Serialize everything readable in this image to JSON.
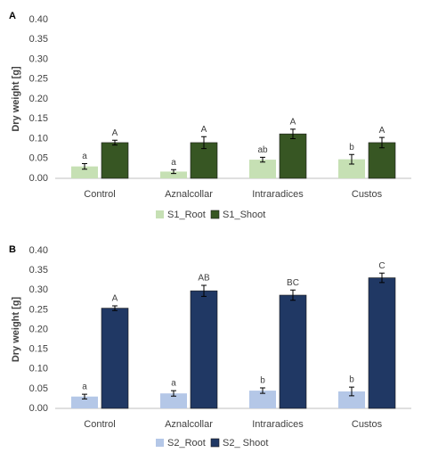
{
  "chart_data": [
    {
      "type": "bar",
      "panel_label": "A",
      "y_label": "Dry weight [g]",
      "categories": [
        "Control",
        "Aznalcollar",
        "Intraradices",
        "Custos"
      ],
      "series": [
        {
          "name": "S1_Root",
          "color": "#c6e0b4",
          "values": [
            0.03,
            0.017,
            0.047,
            0.048
          ],
          "errors": [
            0.007,
            0.005,
            0.006,
            0.012
          ],
          "labels": [
            "a",
            "a",
            "ab",
            "b"
          ]
        },
        {
          "name": "S1_Shoot",
          "color": "#375623",
          "values": [
            0.09,
            0.09,
            0.112,
            0.09
          ],
          "errors": [
            0.006,
            0.015,
            0.012,
            0.013
          ],
          "labels": [
            "A",
            "A",
            "A",
            "A"
          ]
        }
      ],
      "ylim": [
        0,
        0.4
      ],
      "yticks": [
        {
          "value": 0,
          "label": "0.00"
        },
        {
          "value": 0.05,
          "label": "0.05"
        },
        {
          "value": 0.1,
          "label": "0.10"
        },
        {
          "value": 0.15,
          "label": "0.15"
        },
        {
          "value": 0.2,
          "label": "0.20"
        },
        {
          "value": 0.25,
          "label": "0.25"
        },
        {
          "value": 0.3,
          "label": "0.30"
        },
        {
          "value": 0.35,
          "label": "0.35"
        },
        {
          "value": 0.4,
          "label": "0.40"
        }
      ],
      "grid": false,
      "legend": "bottom"
    },
    {
      "type": "bar",
      "panel_label": "B",
      "y_label": "Dry weight [g]",
      "categories": [
        "Control",
        "Aznalcollar",
        "Intraradices",
        "Custos"
      ],
      "series": [
        {
          "name": "S2_Root",
          "color": "#b4c7e7",
          "values": [
            0.03,
            0.038,
            0.045,
            0.043
          ],
          "errors": [
            0.006,
            0.007,
            0.007,
            0.011
          ],
          "labels": [
            "a",
            "a",
            "b",
            "b"
          ]
        },
        {
          "name": "S2_ Shoot",
          "color": "#203864",
          "values": [
            0.254,
            0.298,
            0.287,
            0.331
          ],
          "errors": [
            0.006,
            0.014,
            0.013,
            0.012
          ],
          "labels": [
            "A",
            "AB",
            "BC",
            "C"
          ]
        }
      ],
      "ylim": [
        0,
        0.4
      ],
      "yticks": [
        {
          "value": 0,
          "label": "0.00"
        },
        {
          "value": 0.05,
          "label": "0.05"
        },
        {
          "value": 0.1,
          "label": "0.10"
        },
        {
          "value": 0.15,
          "label": "0.15"
        },
        {
          "value": 0.2,
          "label": "0.20"
        },
        {
          "value": 0.25,
          "label": "0.25"
        },
        {
          "value": 0.3,
          "label": "0.30"
        },
        {
          "value": 0.35,
          "label": "0.35"
        },
        {
          "value": 0.4,
          "label": "0.40"
        }
      ],
      "grid": false,
      "legend": "bottom"
    }
  ]
}
